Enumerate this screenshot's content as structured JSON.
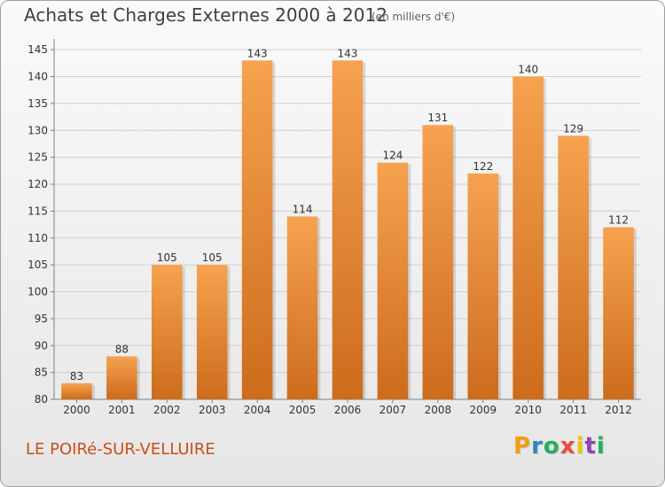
{
  "title": "Achats et Charges Externes 2000 à 2012",
  "subtitle": "(en milliers d'€)",
  "location": "LE POIRé-SUR-VELLUIRE",
  "logo": {
    "text": "Proxiti",
    "letters": [
      "P",
      "r",
      "o",
      "x",
      "i",
      "t",
      "i"
    ],
    "colors": [
      "#f39c12",
      "#2e86c1",
      "#27ae60",
      "#e74c3c",
      "#f1c40f",
      "#8e44ad",
      "#27ae60"
    ]
  },
  "chart_data": {
    "type": "bar",
    "categories": [
      "2000",
      "2001",
      "2002",
      "2003",
      "2004",
      "2005",
      "2006",
      "2007",
      "2008",
      "2009",
      "2010",
      "2011",
      "2012"
    ],
    "values": [
      83,
      88,
      105,
      105,
      143,
      114,
      143,
      124,
      131,
      122,
      140,
      129,
      112
    ],
    "yticks": [
      80,
      85,
      90,
      95,
      100,
      105,
      110,
      115,
      120,
      125,
      130,
      135,
      140,
      145
    ],
    "ylim": [
      80,
      147
    ],
    "grid": true,
    "colors": {
      "bar_top": "#f6a24f",
      "bar_bottom": "#cc6c1c",
      "grid": "#d0d0d0"
    }
  }
}
